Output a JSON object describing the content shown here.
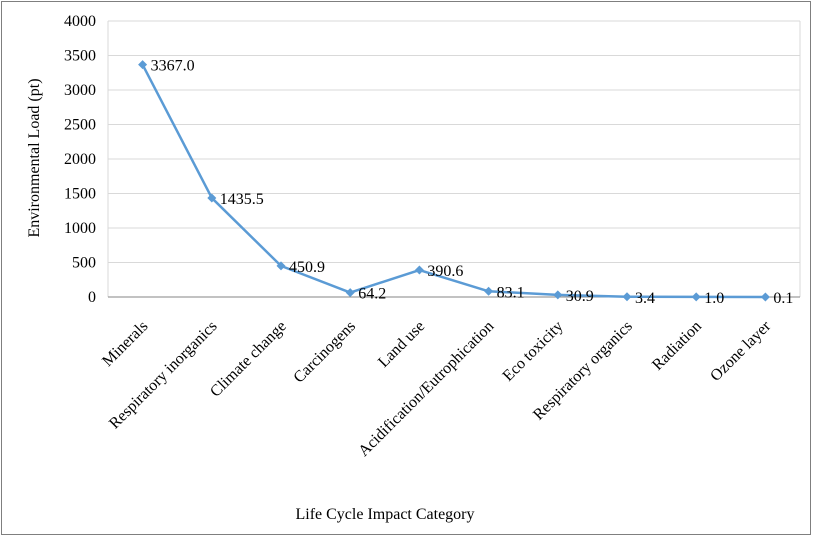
{
  "chart_data": {
    "type": "line",
    "title": "",
    "xlabel": "Life Cycle Impact Category",
    "ylabel": "Environmental Load (pt)",
    "ylim": [
      0,
      4000
    ],
    "yticks": [
      0,
      500,
      1000,
      1500,
      2000,
      2500,
      3000,
      3500,
      4000
    ],
    "grid": true,
    "legend": "none",
    "categories": [
      "Minerals",
      "Respiratory inorganics",
      "Climate change",
      "Carcinogens",
      "Land use",
      "Acidification/Eutrophication",
      "Eco toxicity",
      "Respiratory organics",
      "Radiation",
      "Ozone layer"
    ],
    "series": [
      {
        "name": "Environmental Load",
        "color": "#5b9bd5",
        "values": [
          3367.0,
          1435.5,
          450.9,
          64.2,
          390.6,
          83.1,
          30.9,
          3.4,
          1.0,
          0.1
        ],
        "labels": [
          "3367.0",
          "1435.5",
          "450.9",
          "64.2",
          "390.6",
          "83.1",
          "30.9",
          "3.4",
          "1.0",
          "0.1"
        ]
      }
    ]
  }
}
